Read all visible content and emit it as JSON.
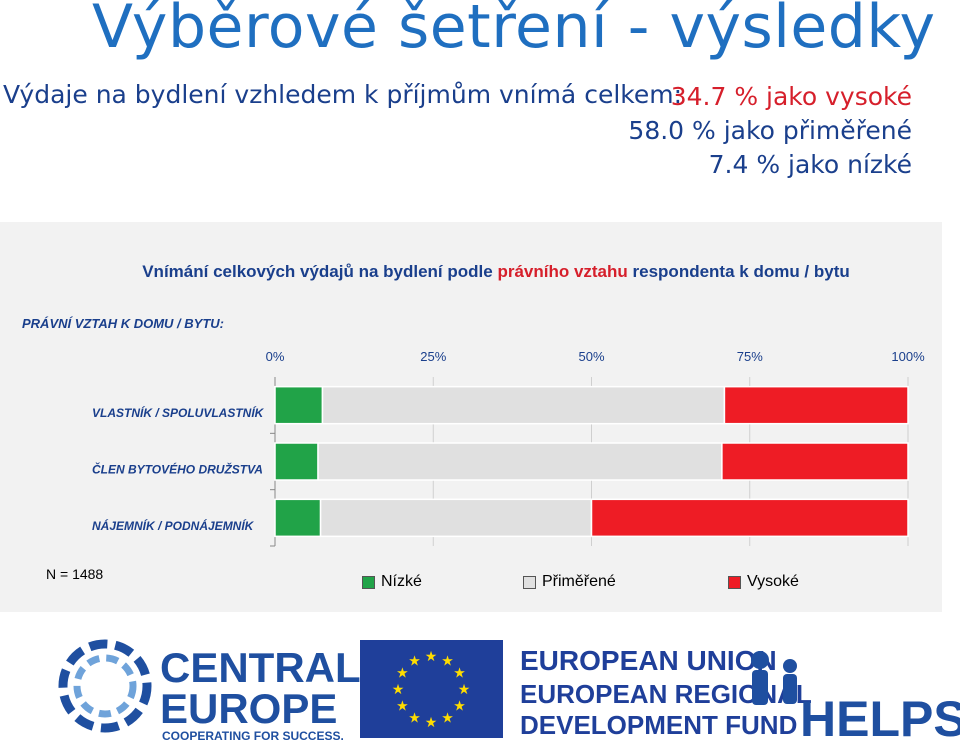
{
  "page": {
    "title": "Výběrové šetření - výsledky",
    "subtitle": "Výdaje na bydlení vzhledem k příjmům vnímá celkem:",
    "summary": {
      "high": "34.7 % jako vysoké",
      "mid": "58.0 % jako přiměřené",
      "low": "7.4 % jako nízké"
    }
  },
  "chart_data": {
    "type": "bar",
    "orientation": "horizontal",
    "stacked": true,
    "title_parts": [
      "Vnímání celkových výdajů na bydlení podle ",
      "právního vztahu",
      " respondenta k domu / bytu"
    ],
    "ylabel": "PRÁVNÍ VZTAH K DOMU / BYTU:",
    "xlim": [
      0,
      100
    ],
    "x_ticks": [
      "0%",
      "25%",
      "50%",
      "75%",
      "100%"
    ],
    "grid": true,
    "legend_position": "bottom",
    "categories": [
      "VLASTNÍK / SPOLUVLASTNÍK",
      "ČLEN BYTOVÉHO DRUŽSTVA",
      "NÁJEMNÍK / PODNÁJEMNÍK"
    ],
    "series": [
      {
        "name": "Nízké",
        "color": "#21a348",
        "values": [
          7.5,
          6.8,
          7.2
        ]
      },
      {
        "name": "Přiměřené",
        "color": "#e0e0e0",
        "values": [
          63.5,
          63.8,
          42.8
        ]
      },
      {
        "name": "Vysoké",
        "color": "#ee1c25",
        "values": [
          29.0,
          29.4,
          50.0
        ]
      }
    ],
    "note": "N = 1488"
  },
  "logos": {
    "central_europe": [
      "CENTRAL",
      "EUROPE",
      "COOPERATING FOR SUCCESS."
    ],
    "eu": [
      "EUROPEAN UNION",
      "EUROPEAN REGIONAL",
      "DEVELOPMENT FUND"
    ],
    "helps": "HELPS"
  }
}
